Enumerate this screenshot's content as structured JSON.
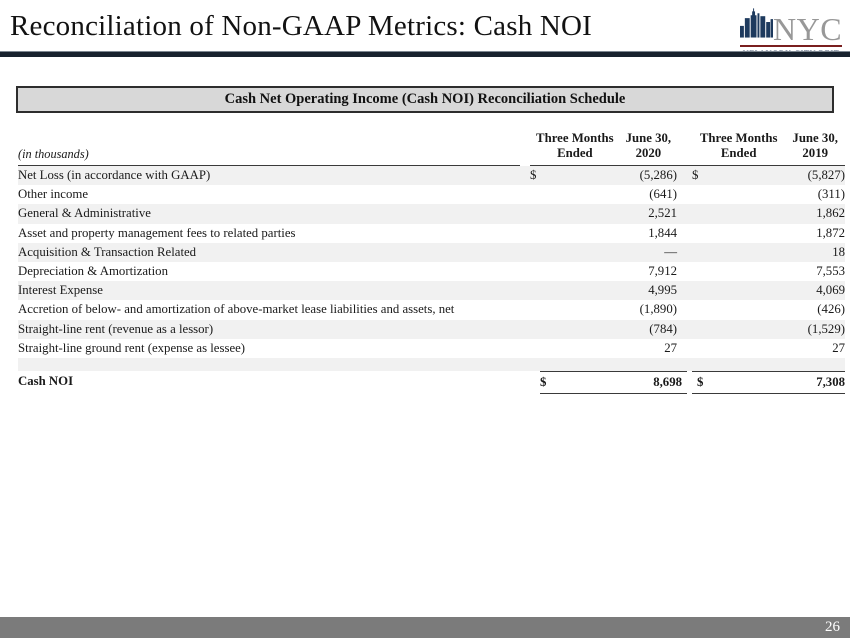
{
  "slide": {
    "title": "Reconciliation of Non-GAAP Metrics: Cash NOI",
    "page_number": "26"
  },
  "logo": {
    "acronym": "NYC",
    "caption": "NEW YORK CITY REIT",
    "colors": {
      "skyline_navy": "#1e3a5e",
      "acronym_gray": "#989898",
      "rule_red": "#7a1f1f",
      "caption_navy": "#1d3150"
    }
  },
  "table": {
    "header": "Cash Net Operating Income (Cash NOI) Reconciliation Schedule",
    "units_note": "(in thousands)",
    "columns": [
      {
        "line1": "Three Months Ended",
        "line2": "June 30, 2020"
      },
      {
        "line1": "Three Months Ended",
        "line2": "June 30, 2019"
      }
    ],
    "rows": [
      {
        "label": "Net Loss (in accordance with GAAP)",
        "sign_2020": "$",
        "value_2020": "(5,286)",
        "sign_2019": "$",
        "value_2019": "(5,827)",
        "shaded": true
      },
      {
        "label": "Other income",
        "sign_2020": "",
        "value_2020": "(641)",
        "sign_2019": "",
        "value_2019": "(311)",
        "shaded": false
      },
      {
        "label": "General & Administrative",
        "sign_2020": "",
        "value_2020": "2,521",
        "sign_2019": "",
        "value_2019": "1,862",
        "shaded": true
      },
      {
        "label": "Asset and property management fees to related parties",
        "sign_2020": "",
        "value_2020": "1,844",
        "sign_2019": "",
        "value_2019": "1,872",
        "shaded": false
      },
      {
        "label": "Acquisition & Transaction Related",
        "sign_2020": "",
        "value_2020": "—",
        "sign_2019": "",
        "value_2019": "18",
        "shaded": true
      },
      {
        "label": "Depreciation & Amortization",
        "sign_2020": "",
        "value_2020": "7,912",
        "sign_2019": "",
        "value_2019": "7,553",
        "shaded": false
      },
      {
        "label": "Interest Expense",
        "sign_2020": "",
        "value_2020": "4,995",
        "sign_2019": "",
        "value_2019": "4,069",
        "shaded": true
      },
      {
        "label": "Accretion of below- and amortization of above-market lease liabilities and assets, net",
        "sign_2020": "",
        "value_2020": "(1,890)",
        "sign_2019": "",
        "value_2019": "(426)",
        "shaded": false
      },
      {
        "label": "Straight-line rent (revenue as a lessor)",
        "sign_2020": "",
        "value_2020": "(784)",
        "sign_2019": "",
        "value_2019": "(1,529)",
        "shaded": true
      },
      {
        "label": "Straight-line ground rent (expense as lessee)",
        "sign_2020": "",
        "value_2020": "27",
        "sign_2019": "",
        "value_2019": "27",
        "shaded": false
      }
    ],
    "total": {
      "label": "Cash NOI",
      "sign_2020": "$",
      "value_2020": "8,698",
      "sign_2019": "$",
      "value_2019": "7,308"
    }
  },
  "colors": {
    "title_rule": "#18222e",
    "header_box_bg": "#d8d8d8",
    "header_box_border": "#2d2d2d",
    "row_stripe": "#f1f1f1",
    "table_rule": "#3a3a3a",
    "footer_bar": "#7b7b7b"
  }
}
